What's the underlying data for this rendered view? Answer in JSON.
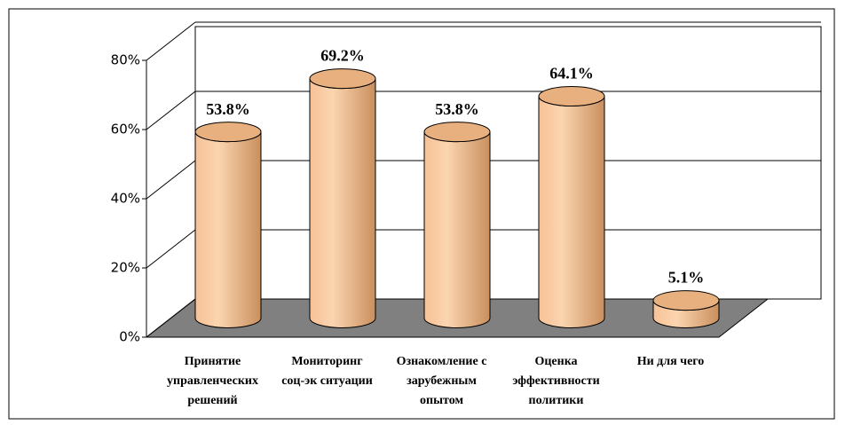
{
  "chart_data": {
    "type": "bar",
    "categories": [
      [
        "Принятие",
        "управленческих",
        "решений"
      ],
      [
        "Мониторинг",
        "соц-эк ситуации"
      ],
      [
        "Ознакомление с",
        "зарубежным",
        "опытом"
      ],
      [
        "Оценка",
        "эффективности",
        "политики"
      ],
      [
        "Ни для чего"
      ]
    ],
    "values": [
      53.8,
      69.2,
      53.8,
      64.1,
      5.1
    ],
    "value_labels": [
      "53.8%",
      "69.2%",
      "53.8%",
      "64.1%",
      "5.1%"
    ],
    "color": "#f2b885",
    "ylim": [
      0,
      80
    ],
    "yticks": [
      {
        "value": 0,
        "label": "0%"
      },
      {
        "value": 20,
        "label": "20%"
      },
      {
        "value": 40,
        "label": "40%"
      },
      {
        "value": 60,
        "label": "60%"
      },
      {
        "value": 80,
        "label": "80%"
      }
    ],
    "grid": true
  }
}
